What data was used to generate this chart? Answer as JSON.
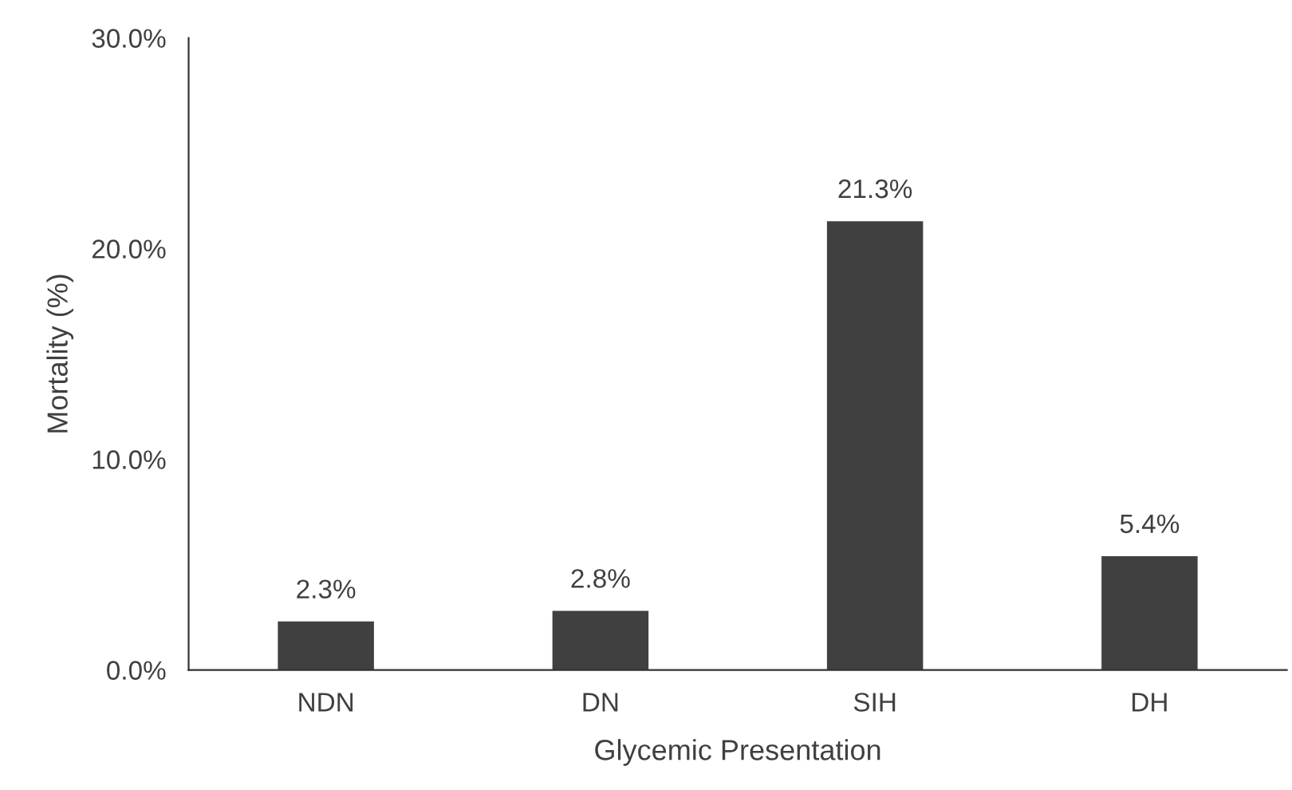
{
  "chart_data": {
    "type": "bar",
    "xlabel": "Glycemic Presentation",
    "ylabel": "Mortality (%)",
    "categories": [
      "NDN",
      "DN",
      "SIH",
      "DH"
    ],
    "values": [
      2.3,
      2.8,
      21.3,
      5.4
    ],
    "value_labels": [
      "2.3%",
      "2.8%",
      "21.3%",
      "5.4%"
    ],
    "color": "#404040",
    "ylim": [
      0,
      30
    ],
    "yticks": [
      {
        "value": 0,
        "label": "0.0%"
      },
      {
        "value": 10,
        "label": "10.0%"
      },
      {
        "value": 20,
        "label": "20.0%"
      },
      {
        "value": 30,
        "label": "30.0%"
      }
    ],
    "grid": false
  }
}
